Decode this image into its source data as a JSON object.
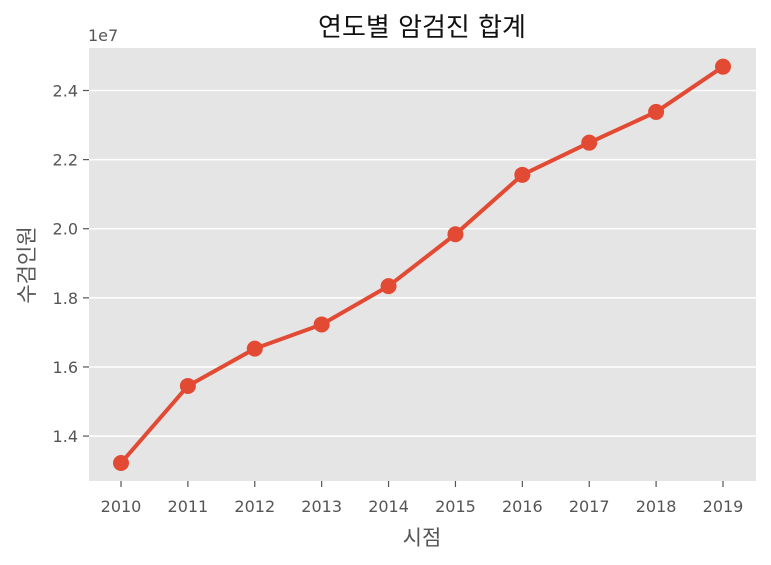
{
  "chart_data": {
    "type": "line",
    "title": "연도별 암검진 합계",
    "xlabel": "시점",
    "ylabel": "수검인원",
    "y_offset_label": "1e7",
    "x": [
      "2010",
      "2011",
      "2012",
      "2013",
      "2014",
      "2015",
      "2016",
      "2017",
      "2018",
      "2019"
    ],
    "series": [
      {
        "values": [
          13220000,
          15450000,
          16530000,
          17230000,
          18340000,
          19840000,
          21560000,
          22490000,
          23380000,
          24690000
        ]
      }
    ],
    "y_ticks": [
      14000000,
      16000000,
      18000000,
      20000000,
      22000000,
      24000000
    ],
    "y_tick_labels": [
      "1.4",
      "1.6",
      "1.8",
      "2.0",
      "2.2",
      "2.4"
    ],
    "ylim": [
      12700000,
      25230000
    ],
    "grid": true,
    "line_color": "#E24A33",
    "plot_bg": "#E5E5E5",
    "grid_color": "#FFFFFF"
  }
}
